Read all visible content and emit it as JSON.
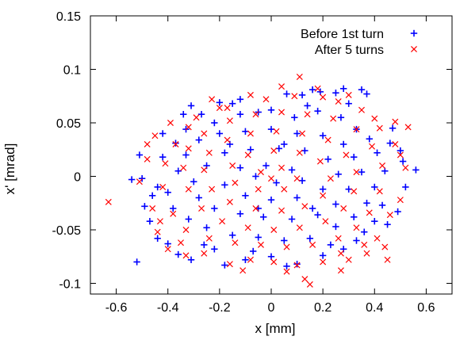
{
  "chart_data": {
    "type": "scatter",
    "title": "",
    "xlabel": "x [mm]",
    "ylabel": "x' [mrad]",
    "xlim": [
      -0.7,
      0.7
    ],
    "ylim": [
      -0.11,
      0.15
    ],
    "x_ticks": [
      -0.6,
      -0.4,
      -0.2,
      0,
      0.2,
      0.4,
      0.6
    ],
    "x_tick_labels": [
      "-0.6",
      "-0.4",
      "-0.2",
      "0",
      "0.2",
      "0.4",
      "0.6"
    ],
    "y_ticks": [
      -0.1,
      -0.05,
      0,
      0.05,
      0.1,
      0.15
    ],
    "y_tick_labels": [
      "-0.1",
      "-0.05",
      "0",
      "0.05",
      "0.1",
      "0.15"
    ],
    "grid": false,
    "legend_position": "top-right",
    "series": [
      {
        "name": "Before 1st turn",
        "marker": "plus",
        "color": "#0000ff",
        "points": [
          [
            -0.52,
            -0.08
          ],
          [
            -0.51,
            0.02
          ],
          [
            -0.54,
            -0.003
          ],
          [
            -0.5,
            -0.002
          ],
          [
            -0.31,
            0.066
          ],
          [
            -0.2,
            0.069
          ],
          [
            -0.12,
            0.072
          ],
          [
            -0.15,
            0.068
          ],
          [
            0.06,
            0.077
          ],
          [
            0.12,
            0.076
          ],
          [
            0.16,
            0.081
          ],
          [
            0.19,
            0.079
          ],
          [
            0.25,
            0.078
          ],
          [
            0.28,
            0.082
          ],
          [
            0.35,
            0.081
          ],
          [
            0.37,
            0.077
          ],
          [
            0.46,
            0.031
          ],
          [
            0.5,
            0.024
          ],
          [
            0.56,
            0.006
          ],
          [
            0.51,
            0.014
          ],
          [
            0.49,
            -0.033
          ],
          [
            0.4,
            -0.042
          ],
          [
            0.43,
            -0.027
          ],
          [
            0.33,
            -0.06
          ],
          [
            0.28,
            -0.068
          ],
          [
            0.2,
            -0.074
          ],
          [
            0.1,
            -0.082
          ],
          [
            0.06,
            -0.084
          ],
          [
            0.0,
            -0.075
          ],
          [
            -0.1,
            -0.078
          ],
          [
            -0.18,
            -0.083
          ],
          [
            -0.22,
            -0.068
          ],
          [
            -0.31,
            -0.078
          ],
          [
            -0.36,
            -0.073
          ],
          [
            -0.4,
            -0.063
          ],
          [
            -0.44,
            -0.058
          ],
          [
            -0.47,
            -0.042
          ],
          [
            -0.49,
            -0.028
          ],
          [
            -0.44,
            -0.01
          ],
          [
            -0.42,
            0.018
          ],
          [
            -0.37,
            0.031
          ],
          [
            -0.33,
            0.044
          ],
          [
            -0.27,
            0.058
          ],
          [
            -0.22,
            0.05
          ],
          [
            -0.12,
            0.058
          ],
          [
            -0.05,
            0.06
          ],
          [
            0.0,
            0.062
          ],
          [
            0.09,
            0.055
          ],
          [
            0.18,
            0.061
          ],
          [
            0.27,
            0.055
          ],
          [
            0.33,
            0.044
          ],
          [
            0.38,
            0.035
          ],
          [
            0.41,
            0.022
          ],
          [
            0.44,
            0.005
          ],
          [
            0.4,
            -0.01
          ],
          [
            0.37,
            -0.025
          ],
          [
            0.32,
            -0.038
          ],
          [
            0.25,
            -0.047
          ],
          [
            0.15,
            -0.058
          ],
          [
            0.05,
            -0.06
          ],
          [
            -0.05,
            -0.057
          ],
          [
            -0.15,
            -0.055
          ],
          [
            -0.25,
            -0.048
          ],
          [
            -0.32,
            -0.04
          ],
          [
            -0.38,
            -0.03
          ],
          [
            -0.4,
            -0.015
          ],
          [
            -0.36,
            0.005
          ],
          [
            -0.33,
            0.02
          ],
          [
            -0.28,
            0.034
          ],
          [
            -0.2,
            0.04
          ],
          [
            -0.1,
            0.042
          ],
          [
            0.0,
            0.044
          ],
          [
            0.1,
            0.04
          ],
          [
            0.2,
            0.038
          ],
          [
            0.28,
            0.03
          ],
          [
            0.32,
            0.018
          ],
          [
            0.35,
            0.004
          ],
          [
            0.3,
            -0.012
          ],
          [
            0.25,
            -0.026
          ],
          [
            0.18,
            -0.036
          ],
          [
            0.08,
            -0.04
          ],
          [
            -0.03,
            -0.038
          ],
          [
            -0.12,
            -0.035
          ],
          [
            -0.22,
            -0.03
          ],
          [
            -0.28,
            -0.02
          ],
          [
            -0.3,
            -0.005
          ],
          [
            -0.25,
            0.01
          ],
          [
            -0.18,
            0.022
          ],
          [
            -0.08,
            0.025
          ],
          [
            0.03,
            0.026
          ],
          [
            0.13,
            0.024
          ],
          [
            0.22,
            0.016
          ],
          [
            0.26,
            0.002
          ],
          [
            0.2,
            -0.012
          ],
          [
            0.1,
            -0.02
          ],
          [
            0.0,
            -0.022
          ],
          [
            -0.1,
            -0.018
          ],
          [
            -0.18,
            -0.008
          ],
          [
            -0.12,
            0.008
          ],
          [
            -0.02,
            0.01
          ],
          [
            0.08,
            0.006
          ],
          [
            0.12,
            -0.004
          ],
          [
            0.02,
            -0.006
          ],
          [
            -0.06,
            0.0
          ],
          [
            0.45,
            -0.045
          ],
          [
            0.36,
            -0.052
          ],
          [
            -0.26,
            -0.064
          ],
          [
            -0.34,
            0.058
          ],
          [
            0.23,
            -0.064
          ],
          [
            -0.07,
            -0.07
          ],
          [
            0.14,
            0.066
          ],
          [
            -0.42,
            0.04
          ],
          [
            0.47,
            0.045
          ],
          [
            -0.46,
            -0.018
          ],
          [
            0.52,
            -0.01
          ],
          [
            0.3,
            0.068
          ],
          [
            -0.16,
            0.03
          ],
          [
            0.05,
            0.03
          ],
          [
            0.16,
            -0.03
          ],
          [
            -0.05,
            -0.03
          ]
        ]
      },
      {
        "name": "After 5 turns",
        "marker": "cross",
        "color": "#ff0000",
        "points": [
          [
            -0.63,
            -0.024
          ],
          [
            0.53,
            0.046
          ],
          [
            0.48,
            0.051
          ],
          [
            0.45,
            -0.078
          ],
          [
            0.27,
            -0.088
          ],
          [
            0.13,
            -0.096
          ],
          [
            0.11,
            0.093
          ],
          [
            0.04,
            0.084
          ],
          [
            0.15,
            -0.101
          ],
          [
            0.18,
            0.082
          ],
          [
            -0.23,
            0.072
          ],
          [
            -0.29,
            0.055
          ],
          [
            -0.39,
            0.05
          ],
          [
            -0.45,
            0.038
          ],
          [
            -0.48,
            0.016
          ],
          [
            -0.51,
            -0.005
          ],
          [
            -0.46,
            -0.03
          ],
          [
            -0.44,
            -0.052
          ],
          [
            -0.4,
            -0.068
          ],
          [
            -0.33,
            -0.074
          ],
          [
            -0.26,
            -0.072
          ],
          [
            -0.16,
            -0.082
          ],
          [
            -0.08,
            -0.078
          ],
          [
            0.01,
            -0.08
          ],
          [
            0.1,
            -0.083
          ],
          [
            0.2,
            -0.08
          ],
          [
            0.27,
            -0.072
          ],
          [
            0.36,
            -0.064
          ],
          [
            0.41,
            -0.058
          ],
          [
            0.46,
            -0.036
          ],
          [
            0.5,
            -0.022
          ],
          [
            0.52,
            0.008
          ],
          [
            0.48,
            0.03
          ],
          [
            0.42,
            0.045
          ],
          [
            0.35,
            0.062
          ],
          [
            0.26,
            0.07
          ],
          [
            0.2,
            0.074
          ],
          [
            0.09,
            0.075
          ],
          [
            -0.02,
            0.072
          ],
          [
            -0.08,
            0.076
          ],
          [
            -0.17,
            0.064
          ],
          [
            -0.32,
            0.046
          ],
          [
            -0.37,
            0.03
          ],
          [
            -0.41,
            0.012
          ],
          [
            -0.42,
            -0.01
          ],
          [
            -0.38,
            -0.035
          ],
          [
            -0.33,
            -0.05
          ],
          [
            -0.24,
            -0.058
          ],
          [
            -0.14,
            -0.062
          ],
          [
            -0.04,
            -0.064
          ],
          [
            0.06,
            -0.066
          ],
          [
            0.16,
            -0.064
          ],
          [
            0.26,
            -0.058
          ],
          [
            0.33,
            -0.048
          ],
          [
            0.38,
            -0.034
          ],
          [
            0.42,
            -0.014
          ],
          [
            0.43,
            0.01
          ],
          [
            0.39,
            0.028
          ],
          [
            0.33,
            0.044
          ],
          [
            0.24,
            0.054
          ],
          [
            0.14,
            0.058
          ],
          [
            0.04,
            0.06
          ],
          [
            -0.06,
            0.058
          ],
          [
            -0.16,
            0.052
          ],
          [
            -0.26,
            0.04
          ],
          [
            -0.32,
            0.026
          ],
          [
            -0.34,
            0.008
          ],
          [
            -0.32,
            -0.012
          ],
          [
            -0.27,
            -0.03
          ],
          [
            -0.19,
            -0.042
          ],
          [
            -0.09,
            -0.048
          ],
          [
            0.01,
            -0.05
          ],
          [
            0.11,
            -0.048
          ],
          [
            0.21,
            -0.042
          ],
          [
            0.28,
            -0.03
          ],
          [
            0.32,
            -0.014
          ],
          [
            0.33,
            0.004
          ],
          [
            0.29,
            0.02
          ],
          [
            0.22,
            0.034
          ],
          [
            0.12,
            0.04
          ],
          [
            0.02,
            0.042
          ],
          [
            -0.08,
            0.04
          ],
          [
            -0.17,
            0.034
          ],
          [
            -0.24,
            0.022
          ],
          [
            -0.26,
            0.006
          ],
          [
            -0.23,
            -0.012
          ],
          [
            -0.16,
            -0.024
          ],
          [
            -0.06,
            -0.03
          ],
          [
            0.04,
            -0.032
          ],
          [
            0.13,
            -0.028
          ],
          [
            0.2,
            -0.018
          ],
          [
            0.23,
            -0.002
          ],
          [
            0.19,
            0.014
          ],
          [
            0.11,
            0.022
          ],
          [
            0.01,
            0.024
          ],
          [
            -0.09,
            0.02
          ],
          [
            -0.15,
            0.01
          ],
          [
            -0.14,
            -0.006
          ],
          [
            -0.05,
            -0.012
          ],
          [
            0.05,
            -0.012
          ],
          [
            0.1,
            -0.002
          ],
          [
            0.04,
            0.008
          ],
          [
            -0.04,
            0.004
          ],
          [
            0.0,
            -0.002
          ],
          [
            -0.35,
            -0.062
          ],
          [
            0.3,
            -0.078
          ],
          [
            -0.11,
            -0.088
          ],
          [
            0.06,
            -0.089
          ],
          [
            0.44,
            -0.066
          ],
          [
            -0.48,
            0.03
          ],
          [
            0.5,
            0.02
          ],
          [
            -0.2,
            0.064
          ],
          [
            0.3,
            0.076
          ],
          [
            0.4,
            0.054
          ],
          [
            -0.43,
            -0.042
          ],
          [
            0.37,
            -0.072
          ]
        ]
      }
    ]
  }
}
